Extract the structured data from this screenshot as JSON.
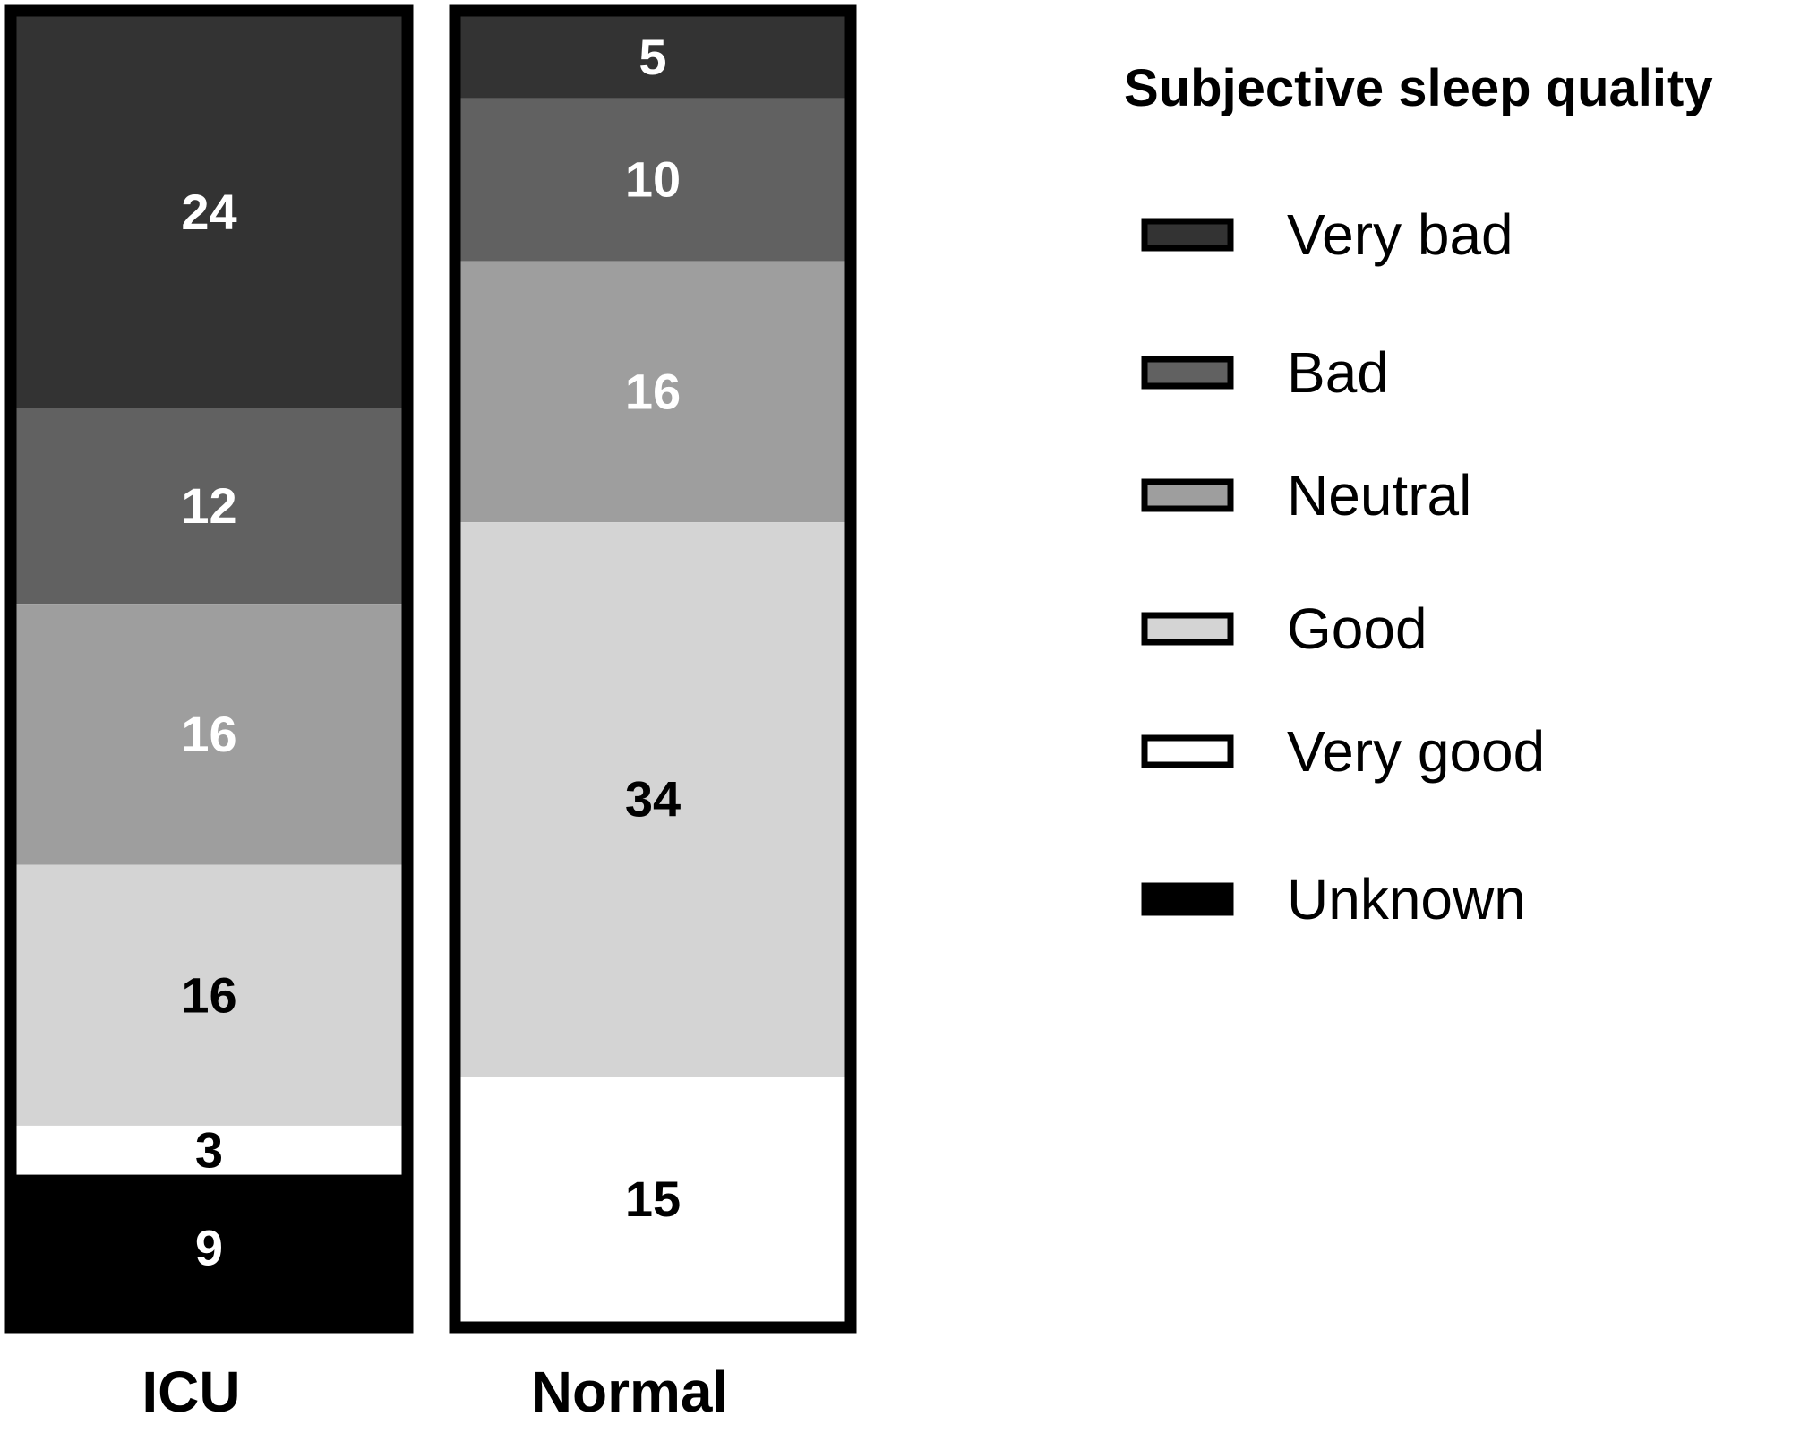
{
  "chart_data": {
    "type": "bar",
    "stacked": true,
    "normalized": true,
    "categories": [
      "ICU",
      "Normal"
    ],
    "series": [
      {
        "name": "Very bad",
        "values": [
          24,
          5
        ],
        "color": "#333333"
      },
      {
        "name": "Bad",
        "values": [
          12,
          10
        ],
        "color": "#616161"
      },
      {
        "name": "Neutral",
        "values": [
          16,
          16
        ],
        "color": "#9e9e9e"
      },
      {
        "name": "Good",
        "values": [
          16,
          34
        ],
        "color": "#d4d4d4"
      },
      {
        "name": "Very good",
        "values": [
          3,
          15
        ],
        "color": "#ffffff"
      },
      {
        "name": "Unknown",
        "values": [
          9,
          0
        ],
        "color": "#000000"
      }
    ],
    "legend_title": "Subjective sleep quality",
    "legend_position": "right",
    "grid": false,
    "title": "",
    "xlabel": "",
    "ylabel": ""
  }
}
